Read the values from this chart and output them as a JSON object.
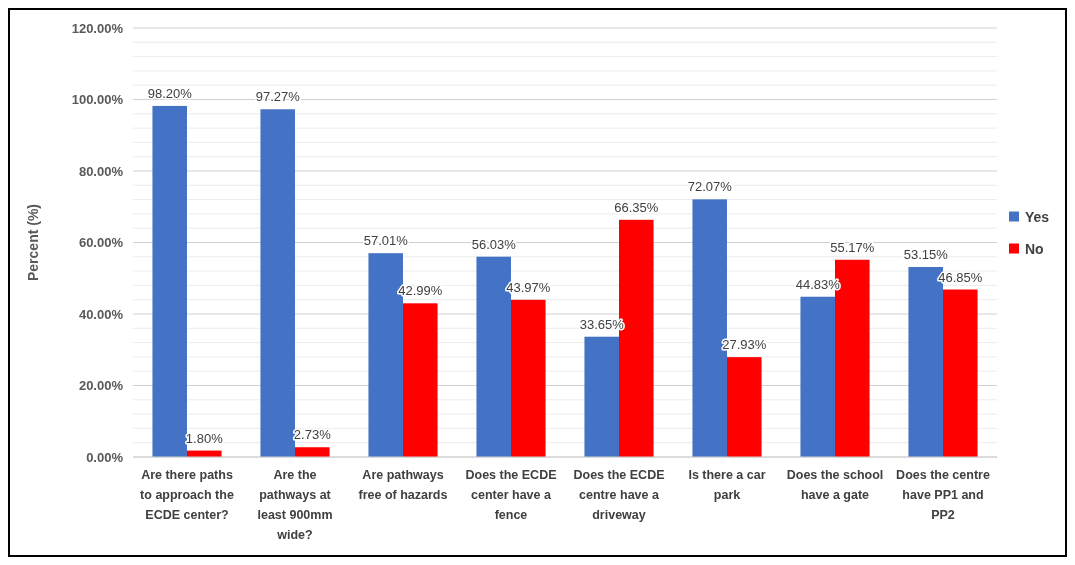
{
  "chart_data": {
    "type": "bar",
    "ylabel": "Percent (%)",
    "categories": [
      "Are there paths to approach the ECDE center?",
      "Are the pathways at least 900mm wide?",
      "Are pathways free of hazards",
      "Does the ECDE center have a fence",
      "Does the ECDE centre have a driveway",
      "Is there a car park",
      "Does the school have a gate",
      "Does the centre have PP1 and PP2"
    ],
    "series": [
      {
        "name": "Yes",
        "color": "#4472c4",
        "values": [
          98.2,
          97.27,
          57.01,
          56.03,
          33.65,
          72.07,
          44.83,
          53.15
        ],
        "value_labels": [
          "98.20%",
          "97.27%",
          "57.01%",
          "56.03%",
          "33.65%",
          "72.07%",
          "44.83%",
          "53.15%"
        ]
      },
      {
        "name": "No",
        "color": "#ff0000",
        "values": [
          1.8,
          2.73,
          42.99,
          43.97,
          66.35,
          27.93,
          55.17,
          46.85
        ],
        "value_labels": [
          "1.80%",
          "2.73%",
          "42.99%",
          "43.97%",
          "66.35%",
          "27.93%",
          "55.17%",
          "46.85%"
        ]
      }
    ],
    "ylim": [
      0,
      120
    ],
    "yticks": [
      {
        "value": 0,
        "label": "0.00%"
      },
      {
        "value": 4,
        "label": null
      },
      {
        "value": 8,
        "label": null
      },
      {
        "value": 12,
        "label": null
      },
      {
        "value": 16,
        "label": null
      },
      {
        "value": 20,
        "label": "20.00%"
      },
      {
        "value": 24,
        "label": null
      },
      {
        "value": 28,
        "label": null
      },
      {
        "value": 32,
        "label": null
      },
      {
        "value": 36,
        "label": null
      },
      {
        "value": 40,
        "label": "40.00%"
      },
      {
        "value": 44,
        "label": null
      },
      {
        "value": 48,
        "label": null
      },
      {
        "value": 52,
        "label": null
      },
      {
        "value": 56,
        "label": null
      },
      {
        "value": 60,
        "label": "60.00%"
      },
      {
        "value": 64,
        "label": null
      },
      {
        "value": 68,
        "label": null
      },
      {
        "value": 72,
        "label": null
      },
      {
        "value": 76,
        "label": null
      },
      {
        "value": 80,
        "label": "80.00%"
      },
      {
        "value": 84,
        "label": null
      },
      {
        "value": 88,
        "label": null
      },
      {
        "value": 92,
        "label": null
      },
      {
        "value": 96,
        "label": null
      },
      {
        "value": 100,
        "label": "100.00%"
      },
      {
        "value": 104,
        "label": null
      },
      {
        "value": 108,
        "label": null
      },
      {
        "value": 112,
        "label": null
      },
      {
        "value": 116,
        "label": null
      },
      {
        "value": 120,
        "label": "120.00%"
      }
    ],
    "grid": true,
    "legend": "right"
  }
}
